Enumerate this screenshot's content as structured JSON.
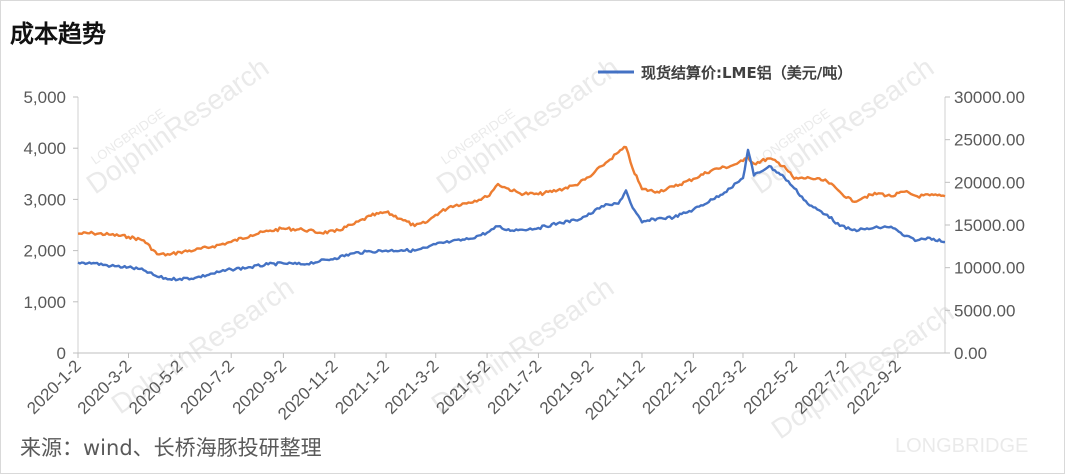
{
  "title": "成本趋势",
  "source": "来源：wind、长桥海豚投研整理",
  "watermark": {
    "main": "DolphinResearch",
    "sub": "LONGBRIDGE",
    "corner": "LONGBRIDGE"
  },
  "chart_data": {
    "type": "line",
    "title": "成本趋势",
    "x_tick_labels": [
      "2020-1-2",
      "2020-3-2",
      "2020-5-2",
      "2020-7-2",
      "2020-9-2",
      "2020-11-2",
      "2021-1-2",
      "2021-3-2",
      "2021-5-2",
      "2021-7-2",
      "2021-9-2",
      "2021-11-2",
      "2022-1-2",
      "2022-3-2",
      "2022-5-2",
      "2022-7-2",
      "2022-9-2"
    ],
    "x_range": [
      "2020-01-02",
      "2022-10-28"
    ],
    "y_left": {
      "ticks": [
        "0",
        "1,000",
        "2,000",
        "3,000",
        "4,000",
        "5,000"
      ],
      "range": [
        0,
        5000
      ]
    },
    "y_right": {
      "ticks": [
        "0.00",
        "5000.00",
        "10000.00",
        "15000.00",
        "20000.00",
        "25000.00",
        "30000.00"
      ],
      "range": [
        0,
        30000
      ]
    },
    "legend_position": "top-right",
    "series": [
      {
        "name": "",
        "axis": "left",
        "color": "#ED7D31",
        "points": [
          [
            "2020-01-02",
            2330
          ],
          [
            "2020-01-20",
            2340
          ],
          [
            "2020-02-10",
            2310
          ],
          [
            "2020-03-02",
            2270
          ],
          [
            "2020-03-20",
            2200
          ],
          [
            "2020-04-05",
            1930
          ],
          [
            "2020-04-20",
            1920
          ],
          [
            "2020-05-02",
            1970
          ],
          [
            "2020-05-20",
            2010
          ],
          [
            "2020-06-10",
            2080
          ],
          [
            "2020-07-02",
            2170
          ],
          [
            "2020-07-25",
            2300
          ],
          [
            "2020-08-15",
            2380
          ],
          [
            "2020-09-02",
            2430
          ],
          [
            "2020-09-25",
            2410
          ],
          [
            "2020-10-15",
            2350
          ],
          [
            "2020-11-02",
            2370
          ],
          [
            "2020-11-25",
            2520
          ],
          [
            "2020-12-15",
            2680
          ],
          [
            "2021-01-02",
            2750
          ],
          [
            "2021-01-20",
            2620
          ],
          [
            "2021-02-05",
            2480
          ],
          [
            "2021-02-20",
            2560
          ],
          [
            "2021-03-02",
            2700
          ],
          [
            "2021-03-20",
            2870
          ],
          [
            "2021-04-10",
            2940
          ],
          [
            "2021-05-02",
            3050
          ],
          [
            "2021-05-15",
            3300
          ],
          [
            "2021-05-25",
            3220
          ],
          [
            "2021-06-10",
            3120
          ],
          [
            "2021-07-02",
            3100
          ],
          [
            "2021-07-25",
            3180
          ],
          [
            "2021-08-15",
            3280
          ],
          [
            "2021-09-02",
            3450
          ],
          [
            "2021-09-15",
            3650
          ],
          [
            "2021-09-25",
            3780
          ],
          [
            "2021-10-05",
            3920
          ],
          [
            "2021-10-14",
            4020
          ],
          [
            "2021-10-22",
            3600
          ],
          [
            "2021-11-02",
            3200
          ],
          [
            "2021-11-20",
            3150
          ],
          [
            "2021-12-10",
            3250
          ],
          [
            "2022-01-02",
            3400
          ],
          [
            "2022-01-25",
            3580
          ],
          [
            "2022-02-15",
            3650
          ],
          [
            "2022-03-02",
            3750
          ],
          [
            "2022-03-08",
            3820
          ],
          [
            "2022-03-15",
            3700
          ],
          [
            "2022-04-02",
            3800
          ],
          [
            "2022-04-20",
            3650
          ],
          [
            "2022-05-02",
            3400
          ],
          [
            "2022-05-20",
            3420
          ],
          [
            "2022-06-10",
            3350
          ],
          [
            "2022-06-25",
            3150
          ],
          [
            "2022-07-10",
            2960
          ],
          [
            "2022-07-25",
            3050
          ],
          [
            "2022-08-10",
            3120
          ],
          [
            "2022-08-25",
            3060
          ],
          [
            "2022-09-10",
            3150
          ],
          [
            "2022-09-25",
            3060
          ],
          [
            "2022-10-10",
            3080
          ],
          [
            "2022-10-28",
            3060
          ]
        ]
      },
      {
        "name": "现货结算价:LME铝（美元/吨）",
        "axis": "right",
        "color": "#4472C4",
        "points": [
          [
            "2020-01-02",
            10600
          ],
          [
            "2020-01-20",
            10550
          ],
          [
            "2020-02-10",
            10200
          ],
          [
            "2020-03-02",
            10050
          ],
          [
            "2020-03-20",
            9700
          ],
          [
            "2020-04-05",
            8950
          ],
          [
            "2020-04-20",
            8650
          ],
          [
            "2020-05-02",
            8700
          ],
          [
            "2020-05-20",
            8800
          ],
          [
            "2020-06-10",
            9300
          ],
          [
            "2020-07-02",
            9800
          ],
          [
            "2020-07-25",
            10050
          ],
          [
            "2020-08-15",
            10400
          ],
          [
            "2020-09-02",
            10500
          ],
          [
            "2020-09-25",
            10400
          ],
          [
            "2020-10-15",
            10750
          ],
          [
            "2020-11-02",
            11100
          ],
          [
            "2020-11-25",
            11700
          ],
          [
            "2020-12-15",
            11900
          ],
          [
            "2021-01-02",
            12000
          ],
          [
            "2021-01-20",
            12050
          ],
          [
            "2021-02-05",
            12000
          ],
          [
            "2021-02-20",
            12350
          ],
          [
            "2021-03-02",
            12750
          ],
          [
            "2021-03-20",
            13050
          ],
          [
            "2021-04-10",
            13350
          ],
          [
            "2021-05-02",
            14100
          ],
          [
            "2021-05-15",
            14850
          ],
          [
            "2021-05-25",
            14400
          ],
          [
            "2021-06-10",
            14450
          ],
          [
            "2021-07-02",
            14650
          ],
          [
            "2021-07-25",
            15200
          ],
          [
            "2021-08-15",
            15550
          ],
          [
            "2021-09-02",
            16300
          ],
          [
            "2021-09-15",
            17200
          ],
          [
            "2021-09-25",
            17350
          ],
          [
            "2021-10-05",
            17500
          ],
          [
            "2021-10-14",
            19050
          ],
          [
            "2021-10-22",
            17000
          ],
          [
            "2021-11-02",
            15300
          ],
          [
            "2021-11-20",
            15750
          ],
          [
            "2021-12-10",
            15900
          ],
          [
            "2022-01-02",
            16800
          ],
          [
            "2022-01-25",
            18000
          ],
          [
            "2022-02-15",
            19300
          ],
          [
            "2022-03-02",
            20500
          ],
          [
            "2022-03-08",
            23800
          ],
          [
            "2022-03-15",
            20800
          ],
          [
            "2022-04-02",
            21900
          ],
          [
            "2022-04-20",
            20600
          ],
          [
            "2022-05-02",
            19300
          ],
          [
            "2022-05-20",
            17300
          ],
          [
            "2022-06-10",
            16200
          ],
          [
            "2022-06-25",
            14900
          ],
          [
            "2022-07-10",
            14400
          ],
          [
            "2022-07-25",
            14500
          ],
          [
            "2022-08-10",
            14700
          ],
          [
            "2022-08-25",
            14800
          ],
          [
            "2022-09-10",
            13700
          ],
          [
            "2022-09-25",
            13200
          ],
          [
            "2022-10-10",
            13500
          ],
          [
            "2022-10-28",
            13000
          ]
        ]
      }
    ]
  }
}
